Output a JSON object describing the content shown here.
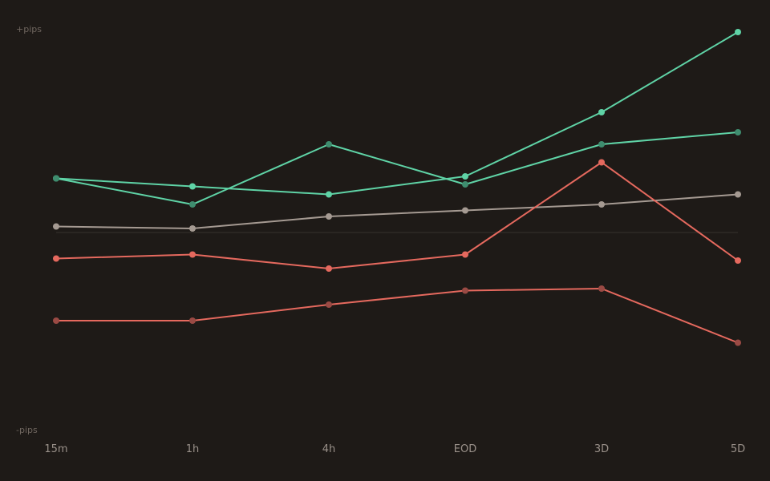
{
  "chart_data": {
    "type": "line",
    "title": "",
    "xlabel": "",
    "ylabel": "",
    "y_top_label": "+pips",
    "y_bottom_label": "-pips",
    "categories": [
      "15m",
      "1h",
      "4h",
      "EOD",
      "3D",
      "5D"
    ],
    "ylim": [
      -100,
      100
    ],
    "grid": false,
    "baseline": 0,
    "legend": "none",
    "series": [
      {
        "color": "#5fd3a6",
        "point_color": "#5fd3a6",
        "values": [
          27,
          23,
          19,
          28,
          60,
          100
        ]
      },
      {
        "color": "#5fd3a6",
        "point_color": "#3f8d6f",
        "values": [
          27,
          14,
          44,
          24,
          44,
          50
        ]
      },
      {
        "color": "#a59a92",
        "point_color": "#a59a92",
        "values": [
          3,
          2,
          8,
          11,
          14,
          19
        ]
      },
      {
        "color": "#e5695e",
        "point_color": "#e5695e",
        "values": [
          -13,
          -11,
          -18,
          -11,
          35,
          -14
        ]
      },
      {
        "color": "#e5695e",
        "point_color": "#9a4a44",
        "values": [
          -44,
          -44,
          -36,
          -29,
          -28,
          -55
        ]
      }
    ],
    "baseline_color": "#2f2a26",
    "label_color": "#6f665f",
    "tick_color": "#9a918a"
  }
}
